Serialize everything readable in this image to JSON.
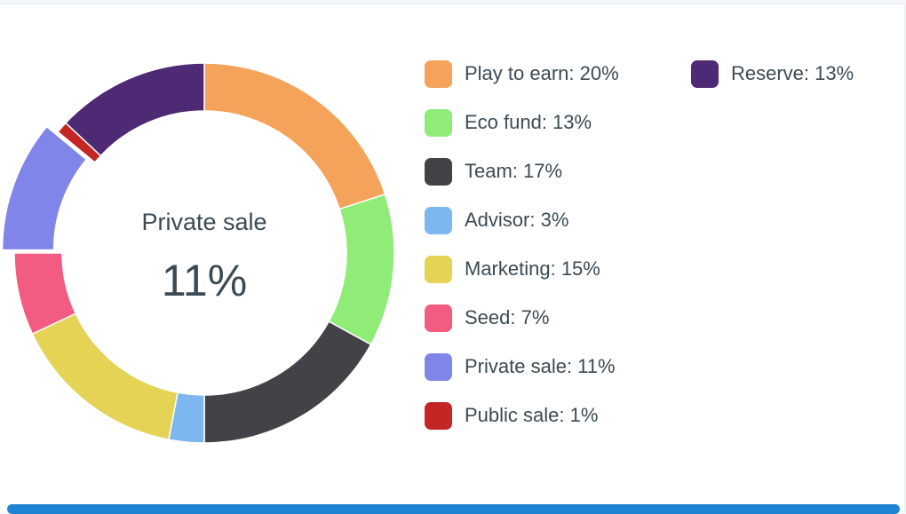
{
  "chart_data": {
    "type": "pie",
    "donut": true,
    "center": {
      "label": "Private sale",
      "value": "11%"
    },
    "slices": [
      {
        "name": "Play to earn",
        "value": 20,
        "label": "Play to earn: 20%",
        "color": "#f5a35a"
      },
      {
        "name": "Eco fund",
        "value": 13,
        "label": "Eco fund: 13%",
        "color": "#8eec77"
      },
      {
        "name": "Team",
        "value": 17,
        "label": "Team: 17%",
        "color": "#434347"
      },
      {
        "name": "Advisor",
        "value": 3,
        "label": "Advisor: 3%",
        "color": "#7db7ef"
      },
      {
        "name": "Marketing",
        "value": 15,
        "label": "Marketing: 15%",
        "color": "#e4d354"
      },
      {
        "name": "Seed",
        "value": 7,
        "label": "Seed: 7%",
        "color": "#f15c80"
      },
      {
        "name": "Private sale",
        "value": 11,
        "label": "Private sale: 11%",
        "color": "#8085e9",
        "highlighted": true
      },
      {
        "name": "Public sale",
        "value": 1,
        "label": "Public sale: 1%",
        "color": "#c42525"
      },
      {
        "name": "Reserve",
        "value": 13,
        "label": "Reserve: 13%",
        "color": "#4d2a73"
      }
    ],
    "legend": "right"
  },
  "scrollbar_color": "#1e84d3"
}
